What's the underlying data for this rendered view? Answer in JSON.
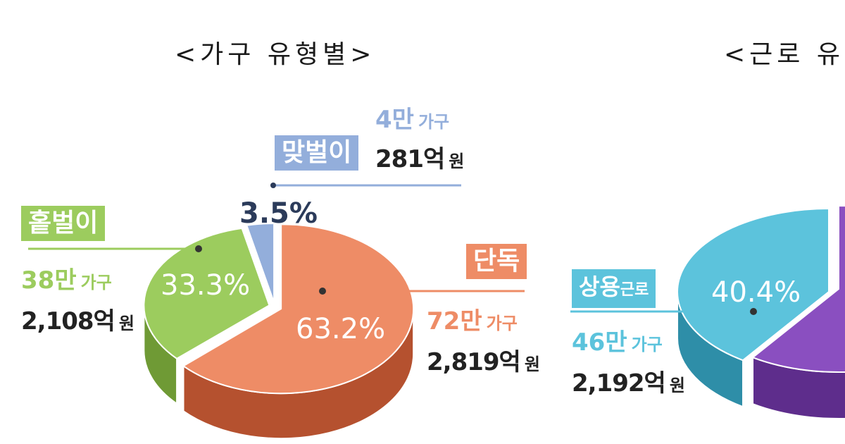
{
  "titles": {
    "left": "<가구 유형별>",
    "right": "<근로 유"
  },
  "colors": {
    "single": "#ee8c66",
    "single_side": "#b5512f",
    "oneearner": "#9ccc5e",
    "oneearner_side": "#6f9a35",
    "dual": "#93aedb",
    "dual_side": "#5b77a8",
    "regular": "#5cc3dc",
    "regular_side": "#2e8ea8",
    "other": "#8a4fc0",
    "other_side": "#5e2d8c"
  },
  "chart_data": [
    {
      "type": "pie",
      "title": "<가구 유형별>",
      "slices": [
        {
          "label": "단독",
          "value": 63.2,
          "percent_label": "63.2%",
          "households": "72만",
          "household_unit": "가구",
          "amount": "2,819억",
          "amount_unit": "원"
        },
        {
          "label": "홑벌이",
          "value": 33.3,
          "percent_label": "33.3%",
          "households": "38만",
          "household_unit": "가구",
          "amount": "2,108억",
          "amount_unit": "원"
        },
        {
          "label": "맞벌이",
          "value": 3.5,
          "percent_label": "3.5%",
          "households": "4만",
          "household_unit": "가구",
          "amount": "281억",
          "amount_unit": "원"
        }
      ]
    },
    {
      "type": "pie",
      "title": "<근로 유",
      "slices": [
        {
          "label": "상용근로",
          "label_main": "상용",
          "label_sub": "근로",
          "value": 40.4,
          "percent_label": "40.4%",
          "households": "46만",
          "household_unit": "가구",
          "amount": "2,192억",
          "amount_unit": "원"
        }
      ]
    }
  ]
}
